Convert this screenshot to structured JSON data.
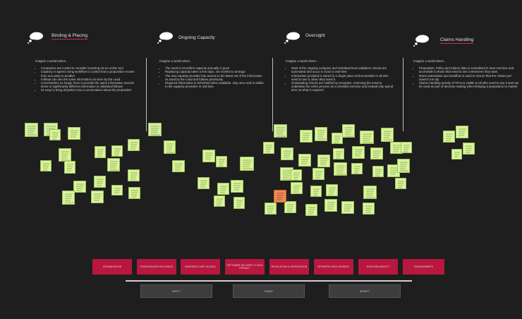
{
  "columns": [
    {
      "title": "Binding & Placing",
      "intro": "Imagine a world where...",
      "bullets": [
        "Companies are invited to consider investing via an online tool",
        "Capacity is agreed using workflow to control how a proposition moves from one party to another",
        "Follows can see the same information as seen by the Lead",
        "Coverholders no longer have to provide the same information several times or significantly different information to individual follows",
        "Its easy to bring all parties into a conversation about the proposition"
      ]
    },
    {
      "title": "Ongoing Capacity",
      "intro": "Imagine a world where...",
      "bullets": [
        "The need to reconfirm capacity annually is gone",
        "Replacing capacity takes a few days, not months to arrange",
        "The new capacity provider has access to the latest set of the information as used by the Lead and follows previously",
        "Required information is refreshed when available, only once and is visible to the capacity providers in real time."
      ]
    },
    {
      "title": "Oversight",
      "intro": "Imagine a world where...",
      "bullets": [
        "Most of the ongoing company and individual level validation checks are automated and occur in close to real-time",
        "Information provided is stored in a single place and accessible to all who need to see it, when they need it",
        "Outstanding checks are notified by exception, removing the need to undertake the entire process as a checklist exercise and instead only spend time on what is required"
      ]
    },
    {
      "title": "Claims Handling",
      "intro": "Imagine a world where...",
      "bullets": [
        "Proposition, Policy and Claims data is centralised in near real time and accessible to those that need to see it whenever they want",
        "Rules automation and workflow is used to ensure that the 'claims pot' doesn't run dry",
        "Claims handling activity of TPAs is visible to all who need to see it and can be used as part of decision making when bringing a proposition to market"
      ]
    }
  ],
  "bottom": {
    "stages": [
      "ORGANISATION",
      "STAKEHOLDER INFLUENCE",
      "BUSINESS CASE (SCALE)",
      "SOFTWARE DELIVERY & DATA PRIVACY",
      "REGULATION & INTEGRATION",
      "NETWORK DEVELOPMENT",
      "DATA AVAILABILITY",
      "ENGAGEMENTS"
    ],
    "labels": [
      "WHY?",
      "HOW?",
      "WHAT?"
    ]
  },
  "colors": {
    "background": "#1e1e1e",
    "sticky": "#d7f59a",
    "accent": "#b8173f",
    "orange": "#f08a55"
  },
  "icons": {
    "column_header": "thought-cloud-icon"
  }
}
